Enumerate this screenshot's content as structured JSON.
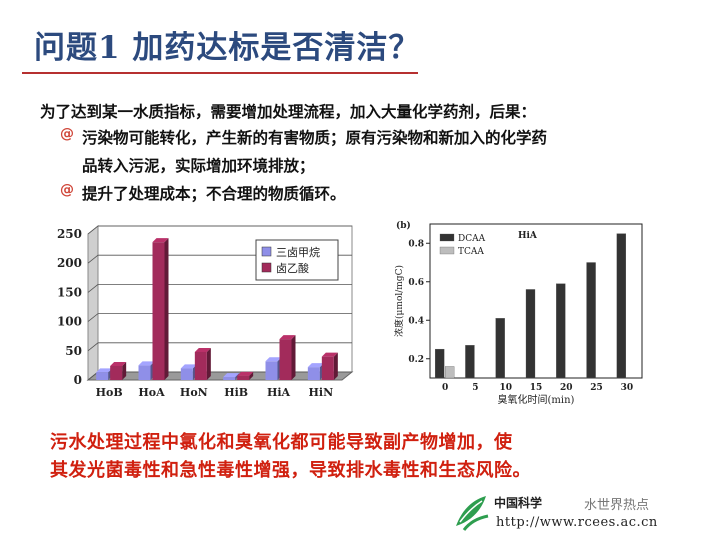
{
  "slide": {
    "title": "问题1  加药达标是否清洁？",
    "intro": "为了达到某一水质指标，需要增加处理流程，加入大量化学药剂，后果：",
    "bullet_symbol": "@",
    "bullets": [
      {
        "line1": "污染物可能转化，产生新的有害物质；原有污染物和新加入的化学药",
        "line2": "品转入污泥，实际增加环境排放；"
      },
      {
        "line1": "提升了处理成本；不合理的物质循环。"
      }
    ],
    "conclusion": {
      "line1": "污水处理过程中氯化和臭氧化都可能导致副产物增加，使",
      "line2": "其发光菌毒性和急性毒性增强，导致排水毒性和生态风险。"
    },
    "footer": {
      "org": "中国科学",
      "url": "http://www.rcees.ac.cn",
      "watermark": "水世界热点"
    }
  },
  "chart_data": [
    {
      "type": "bar",
      "categories": [
        "HoB",
        "HoA",
        "HoN",
        "HiB",
        "HiA",
        "HiN"
      ],
      "series": [
        {
          "name": "三卤甲烷",
          "color": "#8f8fe8",
          "values": [
            13,
            25,
            20,
            5,
            32,
            22
          ]
        },
        {
          "name": "卤乙酸",
          "color": "#a22b5b",
          "values": [
            24,
            236,
            48,
            7,
            70,
            40
          ]
        }
      ],
      "ylim": [
        0,
        250
      ],
      "yticks": [
        0,
        50,
        100,
        150,
        200,
        250
      ],
      "legend": "top-right",
      "grid": true
    },
    {
      "type": "bar",
      "panel_label": "(b)",
      "annotation": "HiA",
      "categories": [
        "0",
        "5",
        "10",
        "15",
        "20",
        "25",
        "30"
      ],
      "series": [
        {
          "name": "DCAA",
          "color": "#333333",
          "values": [
            0.25,
            0.27,
            0.41,
            0.56,
            0.59,
            0.7,
            0.85
          ]
        },
        {
          "name": "TCAA",
          "color": "#bdbdbd",
          "values": [
            0.16,
            0.07,
            0.08,
            0.09,
            0.09,
            0.1,
            0.09
          ]
        }
      ],
      "xlabel": "臭氧化时间(min)",
      "ylabel": "浓度(μmol/mgC)",
      "ylim": [
        0.1,
        0.9
      ],
      "yticks": [
        0.2,
        0.4,
        0.6,
        0.8
      ],
      "legend": "top-left",
      "grid": false
    }
  ]
}
